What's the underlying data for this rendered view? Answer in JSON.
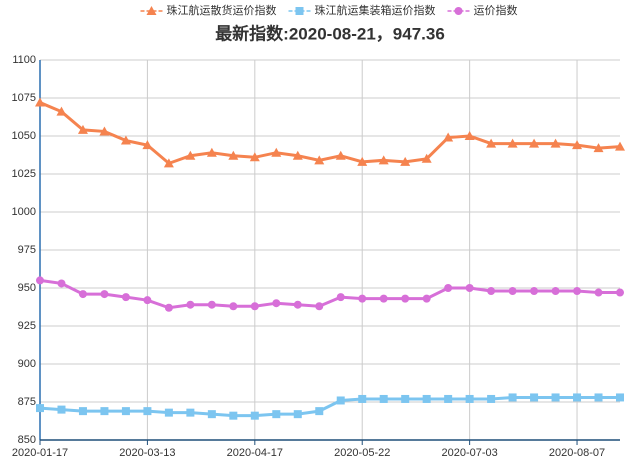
{
  "chart_data": {
    "type": "line",
    "title": "最新指数:2020-08-21，947.36",
    "categories": [
      "2020-01-17",
      null,
      null,
      null,
      null,
      "2020-03-13",
      null,
      null,
      null,
      null,
      "2020-04-17",
      null,
      null,
      null,
      null,
      "2020-05-22",
      null,
      null,
      null,
      null,
      "2020-07-03",
      null,
      null,
      null,
      null,
      "2020-08-07",
      null,
      null
    ],
    "series": [
      {
        "name": "珠江航运散货运价指数",
        "color": "#f5834f",
        "marker": "triangle",
        "values": [
          1072,
          1066,
          1054,
          1053,
          1047,
          1044,
          1032,
          1037,
          1039,
          1037,
          1036,
          1039,
          1037,
          1034,
          1037,
          1033,
          1034,
          1033,
          1035,
          1049,
          1050,
          1045,
          1045,
          1045,
          1045,
          1044,
          1042,
          1043
        ]
      },
      {
        "name": "珠江航运集装箱运价指数",
        "color": "#7cc5f0",
        "marker": "square",
        "values": [
          871,
          870,
          869,
          869,
          869,
          869,
          868,
          868,
          867,
          866,
          866,
          867,
          867,
          869,
          876,
          877,
          877,
          877,
          877,
          877,
          877,
          877,
          878,
          878,
          878,
          878,
          878,
          878
        ]
      },
      {
        "name": "运价指数",
        "color": "#d76fd8",
        "marker": "circle",
        "values": [
          955,
          953,
          946,
          946,
          944,
          942,
          937,
          939,
          939,
          938,
          938,
          940,
          939,
          938,
          944,
          943,
          943,
          943,
          943,
          950,
          950,
          948,
          948,
          948,
          948,
          948,
          947,
          947
        ]
      }
    ],
    "ylim": [
      850,
      1100
    ],
    "yticks": [
      850,
      875,
      900,
      925,
      950,
      975,
      1000,
      1025,
      1050,
      1075,
      1100
    ],
    "grid": true,
    "legend": "top"
  }
}
